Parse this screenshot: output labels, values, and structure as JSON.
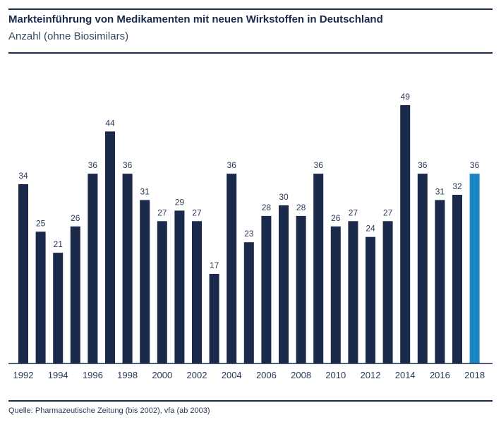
{
  "header": {
    "title": "Markteinführung von Medikamenten mit neuen Wirkstoffen in Deutschland",
    "subtitle": "Anzahl (ohne Biosimilars)"
  },
  "footer": {
    "source": "Quelle: Pharmazeutische Zeitung (bis 2002), vfa (ab 2003)"
  },
  "colors": {
    "bar": "#1b2a4a",
    "highlight": "#1a86c6"
  },
  "chart_data": {
    "type": "bar",
    "title": "Markteinführung von Medikamenten mit neuen Wirkstoffen in Deutschland",
    "subtitle": "Anzahl (ohne Biosimilars)",
    "xlabel": "",
    "ylabel": "",
    "categories": [
      "1992",
      "1993",
      "1994",
      "1995",
      "1996",
      "1997",
      "1998",
      "1999",
      "2000",
      "2001",
      "2002",
      "2003",
      "2004",
      "2005",
      "2006",
      "2007",
      "2008",
      "2009",
      "2010",
      "2011",
      "2012",
      "2013",
      "2014",
      "2015",
      "2016",
      "2017",
      "2018"
    ],
    "values": [
      34,
      25,
      21,
      26,
      36,
      44,
      36,
      31,
      27,
      29,
      27,
      17,
      36,
      23,
      28,
      30,
      28,
      36,
      26,
      27,
      24,
      27,
      49,
      36,
      31,
      32,
      36
    ],
    "x_tick_labels": [
      "1992",
      "1994",
      "1996",
      "1998",
      "2000",
      "2002",
      "2004",
      "2006",
      "2008",
      "2010",
      "2012",
      "2014",
      "2016",
      "2018"
    ],
    "highlighted_category": "2018",
    "ylim": [
      0,
      49
    ],
    "grid": false,
    "legend": "none"
  }
}
